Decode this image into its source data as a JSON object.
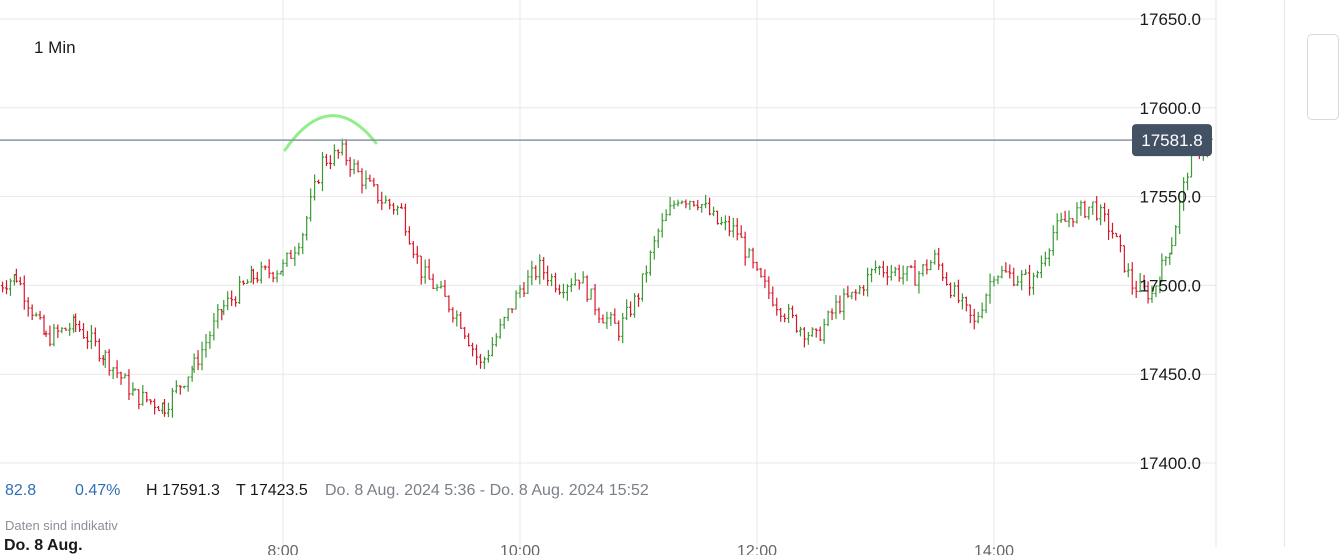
{
  "header": {
    "interval_label": "1 Min"
  },
  "stats": {
    "change_value": "82.8",
    "change_percent": "0.47%",
    "high": "H 17591.3",
    "low": "T 17423.5",
    "range": "Do. 8 Aug. 2024 5:36 - Do. 8 Aug. 2024 15:52"
  },
  "footer": {
    "disclaimer": "Daten sind indikativ",
    "date": "Do. 8 Aug."
  },
  "colors": {
    "up": "#3a9a33",
    "down": "#d7192b",
    "annotation": "#8ff08a",
    "price_tag_bg": "#435165",
    "grid": "#e8e8e8"
  },
  "chart_data": {
    "type": "ohlc",
    "instrument_interval": "1 Min",
    "y_ticks": [
      17650.0,
      17600.0,
      17550.0,
      17500.0,
      17450.0,
      17400.0
    ],
    "y_tick_labels": [
      "17650.0",
      "17600.0",
      "17550.0",
      "17500.0",
      "17450.0",
      "17400.0"
    ],
    "ylim": [
      17400,
      17650
    ],
    "x_tick_labels": [
      "8:00",
      "10:00",
      "12:00",
      "14:00"
    ],
    "last_price": 17581.8,
    "last_price_label": "17581.8",
    "high": 17591.3,
    "low": 17423.5,
    "close_path": [
      [
        "5:36",
        17500
      ],
      [
        "5:45",
        17505
      ],
      [
        "6:00",
        17470
      ],
      [
        "6:15",
        17478
      ],
      [
        "6:30",
        17460
      ],
      [
        "6:45",
        17438
      ],
      [
        "7:00",
        17432
      ],
      [
        "7:15",
        17455
      ],
      [
        "7:30",
        17488
      ],
      [
        "7:45",
        17505
      ],
      [
        "8:00",
        17510
      ],
      [
        "8:10",
        17530
      ],
      [
        "8:20",
        17570
      ],
      [
        "8:30",
        17575
      ],
      [
        "8:40",
        17560
      ],
      [
        "8:50",
        17548
      ],
      [
        "9:00",
        17542
      ],
      [
        "9:10",
        17508
      ],
      [
        "9:20",
        17495
      ],
      [
        "9:30",
        17480
      ],
      [
        "9:40",
        17455
      ],
      [
        "9:50",
        17475
      ],
      [
        "10:00",
        17498
      ],
      [
        "10:10",
        17510
      ],
      [
        "10:20",
        17500
      ],
      [
        "10:30",
        17505
      ],
      [
        "10:40",
        17485
      ],
      [
        "10:50",
        17475
      ],
      [
        "11:00",
        17495
      ],
      [
        "11:10",
        17530
      ],
      [
        "11:20",
        17550
      ],
      [
        "11:30",
        17548
      ],
      [
        "11:40",
        17535
      ],
      [
        "11:50",
        17530
      ],
      [
        "12:00",
        17505
      ],
      [
        "12:10",
        17490
      ],
      [
        "12:20",
        17478
      ],
      [
        "12:30",
        17470
      ],
      [
        "12:40",
        17488
      ],
      [
        "12:50",
        17495
      ],
      [
        "13:00",
        17510
      ],
      [
        "13:10",
        17508
      ],
      [
        "13:20",
        17505
      ],
      [
        "13:30",
        17515
      ],
      [
        "13:40",
        17495
      ],
      [
        "13:50",
        17478
      ],
      [
        "14:00",
        17508
      ],
      [
        "14:10",
        17505
      ],
      [
        "14:20",
        17502
      ],
      [
        "14:30",
        17530
      ],
      [
        "14:40",
        17540
      ],
      [
        "14:50",
        17545
      ],
      [
        "15:00",
        17530
      ],
      [
        "15:10",
        17500
      ],
      [
        "15:20",
        17495
      ],
      [
        "15:25",
        17510
      ],
      [
        "15:30",
        17525
      ],
      [
        "15:40",
        17575
      ],
      [
        "15:52",
        17581.8
      ]
    ]
  }
}
